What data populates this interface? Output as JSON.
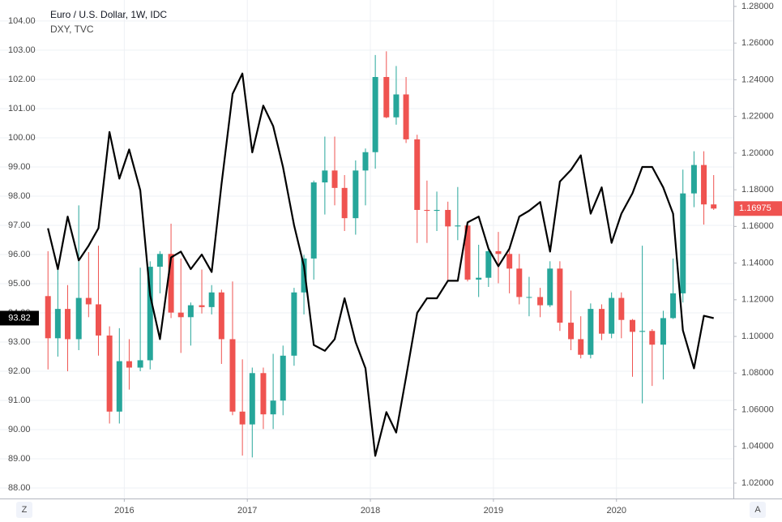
{
  "chart_data": {
    "type": "candlestick",
    "title": "Euro / U.S. Dollar, 1W, IDC",
    "subtitle": "DXY, TVC",
    "x": [
      2015.38,
      2015.46,
      2015.54,
      2015.63,
      2015.71,
      2015.79,
      2015.88,
      2015.96,
      2016.04,
      2016.13,
      2016.21,
      2016.29,
      2016.38,
      2016.46,
      2016.54,
      2016.63,
      2016.71,
      2016.79,
      2016.88,
      2016.96,
      2017.04,
      2017.13,
      2017.21,
      2017.29,
      2017.38,
      2017.46,
      2017.54,
      2017.63,
      2017.71,
      2017.79,
      2017.88,
      2017.96,
      2018.04,
      2018.13,
      2018.21,
      2018.29,
      2018.38,
      2018.46,
      2018.54,
      2018.63,
      2018.71,
      2018.79,
      2018.88,
      2018.96,
      2019.04,
      2019.13,
      2019.21,
      2019.29,
      2019.38,
      2019.46,
      2019.54,
      2019.63,
      2019.71,
      2019.79,
      2019.88,
      2019.96,
      2020.04,
      2020.13,
      2020.21,
      2020.29,
      2020.38,
      2020.46,
      2020.54,
      2020.63,
      2020.71,
      2020.79
    ],
    "xlim": [
      2014.99,
      2020.95
    ],
    "xticks": [
      2016,
      2017,
      2018,
      2019,
      2020
    ],
    "series": [
      {
        "name": "Euro / U.S. Dollar, 1W, IDC",
        "axis": "y2",
        "up_color": "#26a69a",
        "down_color": "#ef5350",
        "open": [
          1.122,
          1.099,
          1.115,
          1.0985,
          1.121,
          1.1175,
          1.1005,
          1.059,
          1.0865,
          1.083,
          1.087,
          1.138,
          1.145,
          1.113,
          1.1105,
          1.117,
          1.116,
          1.124,
          1.0985,
          1.059,
          1.052,
          1.08,
          1.0575,
          1.065,
          1.0895,
          1.124,
          1.1425,
          1.184,
          1.1905,
          1.181,
          1.1645,
          1.1905,
          1.2005,
          1.2415,
          1.2195,
          1.232,
          1.2075,
          1.169,
          1.1685,
          1.169,
          1.16,
          1.1605,
          1.131,
          1.132,
          1.1465,
          1.145,
          1.137,
          1.1215,
          1.1215,
          1.117,
          1.137,
          1.1075,
          1.0985,
          1.09,
          1.115,
          1.1015,
          1.121,
          1.109,
          1.1025,
          1.103,
          1.0955,
          1.11,
          1.1235,
          1.178,
          1.1935,
          1.172
        ],
        "high": [
          1.1465,
          1.1385,
          1.128,
          1.1715,
          1.146,
          1.1495,
          1.1055,
          1.1045,
          1.0985,
          1.1375,
          1.141,
          1.1465,
          1.1615,
          1.1425,
          1.1185,
          1.1365,
          1.128,
          1.1255,
          1.13,
          1.0875,
          1.083,
          1.083,
          1.0905,
          1.095,
          1.1265,
          1.1445,
          1.185,
          1.209,
          1.209,
          1.188,
          1.196,
          1.2025,
          1.2535,
          1.2555,
          1.2475,
          1.2415,
          1.21,
          1.185,
          1.179,
          1.1735,
          1.1815,
          1.1625,
          1.15,
          1.1485,
          1.157,
          1.149,
          1.145,
          1.1325,
          1.1265,
          1.141,
          1.141,
          1.125,
          1.111,
          1.118,
          1.1175,
          1.124,
          1.124,
          1.1095,
          1.1495,
          1.104,
          1.114,
          1.1425,
          1.191,
          1.201,
          1.201,
          1.188
        ],
        "low": [
          1.082,
          1.089,
          1.081,
          1.0925,
          1.1105,
          1.0895,
          1.0525,
          1.0525,
          1.071,
          1.081,
          1.082,
          1.1235,
          1.11,
          1.091,
          1.095,
          1.1125,
          1.112,
          1.085,
          1.057,
          1.035,
          1.034,
          1.0495,
          1.0495,
          1.057,
          1.084,
          1.112,
          1.131,
          1.1665,
          1.1715,
          1.1575,
          1.1555,
          1.1715,
          1.1915,
          1.219,
          1.2155,
          1.2055,
          1.151,
          1.151,
          1.1575,
          1.13,
          1.1525,
          1.13,
          1.1215,
          1.127,
          1.129,
          1.1235,
          1.1175,
          1.111,
          1.1105,
          1.116,
          1.103,
          1.0925,
          1.088,
          1.088,
          1.098,
          1.099,
          1.099,
          1.078,
          1.0635,
          1.073,
          1.0765,
          1.1095,
          1.1185,
          1.1705,
          1.161,
          1.169
        ],
        "close": [
          1.099,
          1.115,
          1.0985,
          1.121,
          1.1175,
          1.1005,
          1.059,
          1.0865,
          1.083,
          1.087,
          1.138,
          1.145,
          1.113,
          1.1105,
          1.117,
          1.116,
          1.124,
          1.0985,
          1.059,
          1.052,
          1.08,
          1.0575,
          1.065,
          1.0895,
          1.124,
          1.1425,
          1.184,
          1.1905,
          1.181,
          1.1645,
          1.1905,
          1.2005,
          1.2415,
          1.2195,
          1.232,
          1.2075,
          1.169,
          1.1685,
          1.169,
          1.16,
          1.1605,
          1.131,
          1.132,
          1.1465,
          1.145,
          1.137,
          1.1215,
          1.1215,
          1.117,
          1.137,
          1.1075,
          1.0985,
          1.09,
          1.115,
          1.1015,
          1.121,
          1.109,
          1.1025,
          1.103,
          1.0955,
          1.11,
          1.1235,
          1.178,
          1.1935,
          1.172,
          1.16975
        ]
      },
      {
        "name": "DXY, TVC",
        "color": "#000000",
        "values": [
          96.9,
          95.5,
          97.3,
          95.8,
          96.3,
          96.9,
          100.2,
          98.6,
          99.6,
          98.2,
          94.6,
          93.1,
          95.9,
          96.1,
          95.5,
          96.0,
          95.4,
          98.4,
          101.5,
          102.2,
          99.5,
          101.1,
          100.4,
          99.0,
          97.0,
          95.6,
          92.9,
          92.7,
          93.1,
          94.5,
          93.0,
          92.1,
          89.1,
          90.6,
          89.9,
          91.8,
          94.0,
          94.5,
          94.5,
          95.1,
          95.1,
          97.1,
          97.3,
          96.2,
          95.6,
          96.2,
          97.3,
          97.5,
          97.8,
          96.1,
          98.5,
          98.9,
          99.4,
          97.4,
          98.3,
          96.4,
          97.4,
          98.1,
          99.0,
          99.0,
          98.3,
          97.4,
          93.4,
          92.1,
          93.9,
          93.82
        ]
      }
    ],
    "ylim": [
      87.64,
      104.72
    ],
    "yticks": [
      {
        "value": 88,
        "label": "88.00"
      },
      {
        "value": 89,
        "label": "89.00"
      },
      {
        "value": 90,
        "label": "90.00"
      },
      {
        "value": 91,
        "label": "91.00"
      },
      {
        "value": 92,
        "label": "92.00"
      },
      {
        "value": 93,
        "label": "93.00"
      },
      {
        "value": 94,
        "label": "94.00"
      },
      {
        "value": 95,
        "label": "95.00"
      },
      {
        "value": 96,
        "label": "96.00"
      },
      {
        "value": 97,
        "label": "97.00"
      },
      {
        "value": 98,
        "label": "98.00"
      },
      {
        "value": 99,
        "label": "99.00"
      },
      {
        "value": 100,
        "label": "100.00"
      },
      {
        "value": 101,
        "label": "101.00"
      },
      {
        "value": 102,
        "label": "102.00"
      },
      {
        "value": 103,
        "label": "103.00"
      },
      {
        "value": 104,
        "label": "104.00"
      }
    ],
    "y2lim": [
      1.0116,
      1.2835
    ],
    "y2ticks": [
      {
        "value": 1.02,
        "label": "1.02000"
      },
      {
        "value": 1.04,
        "label": "1.04000"
      },
      {
        "value": 1.06,
        "label": "1.06000"
      },
      {
        "value": 1.08,
        "label": "1.08000"
      },
      {
        "value": 1.1,
        "label": "1.10000"
      },
      {
        "value": 1.12,
        "label": "1.12000"
      },
      {
        "value": 1.14,
        "label": "1.14000"
      },
      {
        "value": 1.16,
        "label": "1.16000"
      },
      {
        "value": 1.18,
        "label": "1.18000"
      },
      {
        "value": 1.2,
        "label": "1.20000"
      },
      {
        "value": 1.22,
        "label": "1.22000"
      },
      {
        "value": 1.24,
        "label": "1.24000"
      },
      {
        "value": 1.26,
        "label": "1.26000"
      },
      {
        "value": 1.28,
        "label": "1.28000"
      }
    ],
    "grid": true,
    "buttons": [
      "Z",
      "A"
    ]
  }
}
